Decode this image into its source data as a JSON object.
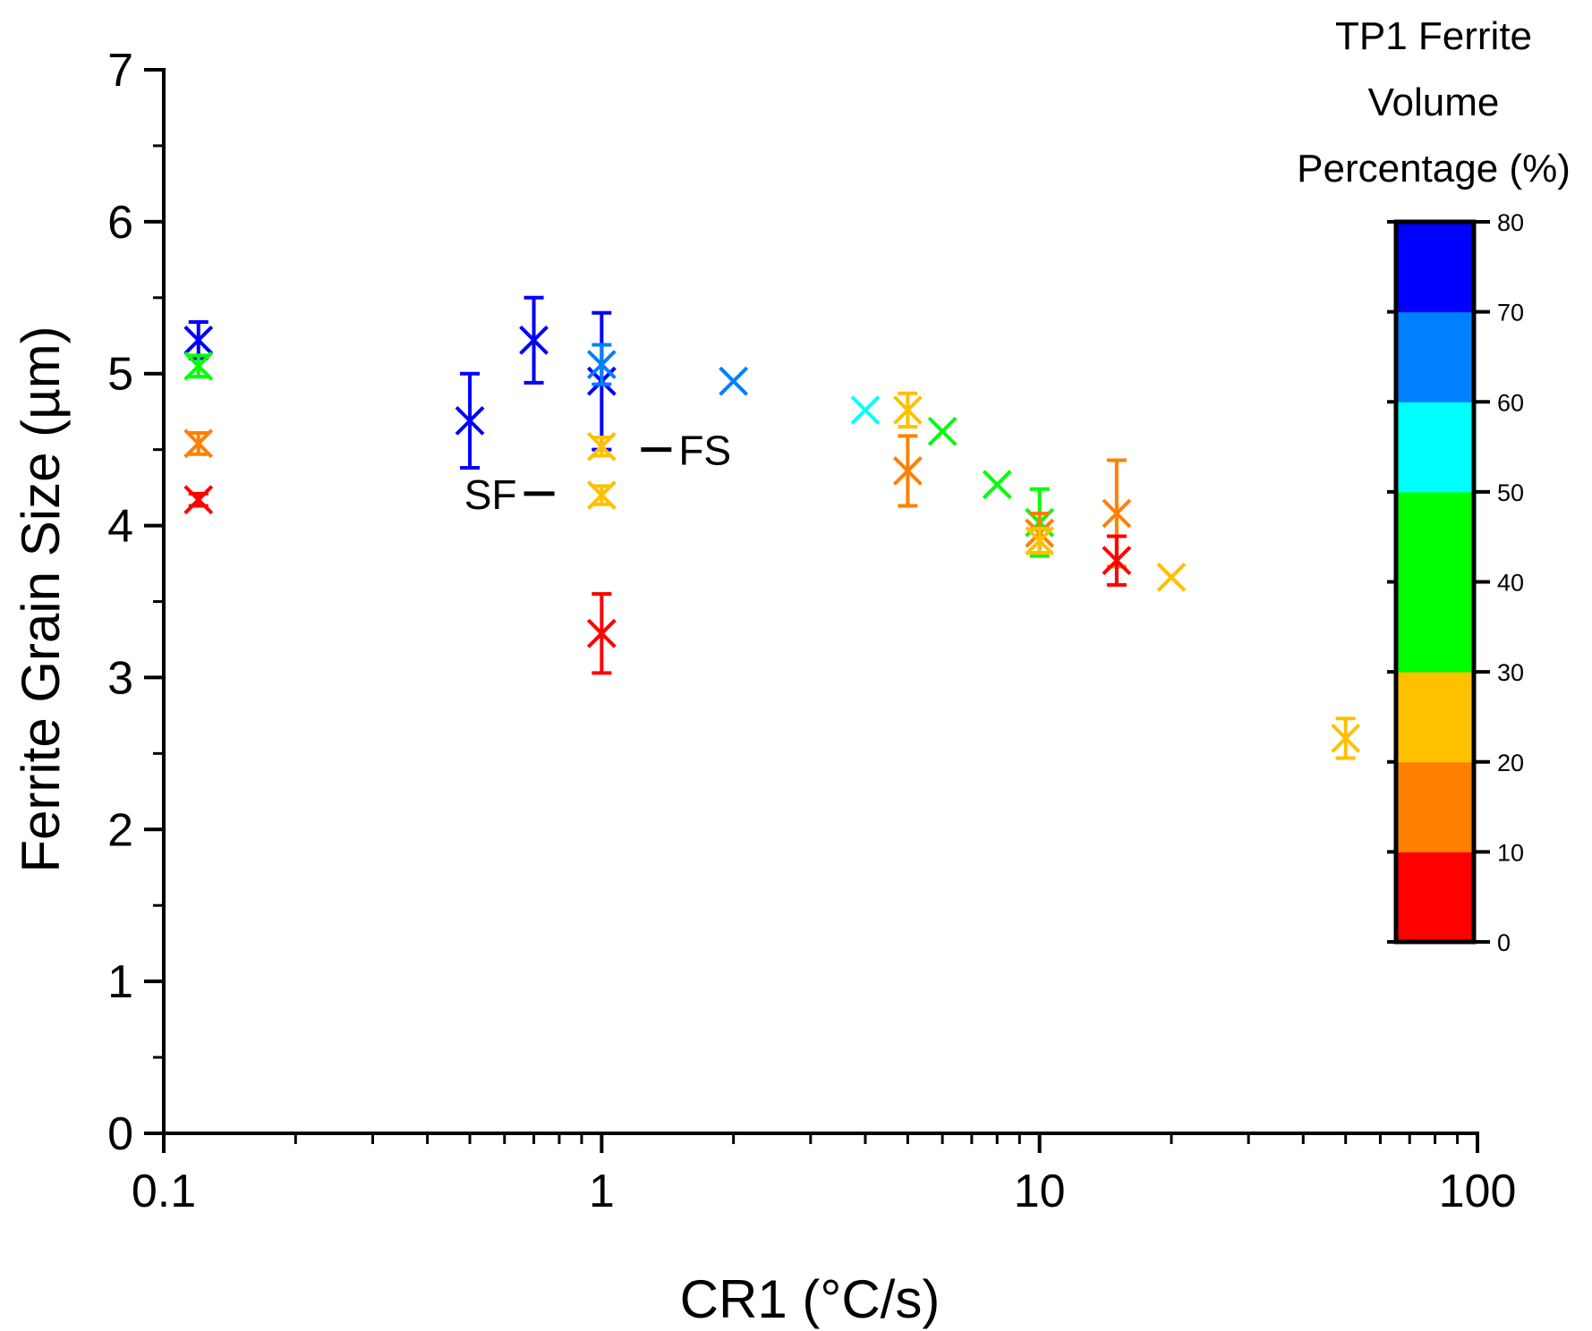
{
  "chart_data": {
    "type": "scatter",
    "xscale": "log",
    "xlabel": "CR1 (°C/s)",
    "ylabel": "Ferrite Grain Size (µm)",
    "xlim": [
      0.1,
      100
    ],
    "ylim": [
      0,
      7
    ],
    "xticks": [
      0.1,
      1,
      10,
      100
    ],
    "xtick_labels": [
      "0.1",
      "1",
      "10",
      "100"
    ],
    "yticks": [
      0,
      1,
      2,
      3,
      4,
      5,
      6,
      7
    ],
    "ytick_labels": [
      "0",
      "1",
      "2",
      "3",
      "4",
      "5",
      "6",
      "7"
    ],
    "colorbar": {
      "title_lines": [
        "TP1 Ferrite",
        "Volume",
        "Percentage (%)"
      ],
      "range": [
        0,
        80
      ],
      "ticks": [
        0,
        10,
        20,
        30,
        40,
        50,
        60,
        70,
        80
      ],
      "tick_labels": [
        "0",
        "10",
        "20",
        "30",
        "40",
        "50",
        "60",
        "70",
        "80"
      ],
      "bands": [
        {
          "from": 0,
          "to": 10,
          "color": "#ff0000"
        },
        {
          "from": 10,
          "to": 20,
          "color": "#ff8000"
        },
        {
          "from": 20,
          "to": 30,
          "color": "#ffc000"
        },
        {
          "from": 30,
          "to": 40,
          "color": "#00ff00"
        },
        {
          "from": 40,
          "to": 50,
          "color": "#00ff00"
        },
        {
          "from": 50,
          "to": 60,
          "color": "#00ffff"
        },
        {
          "from": 60,
          "to": 70,
          "color": "#0080ff"
        },
        {
          "from": 70,
          "to": 80,
          "color": "#0000ff"
        }
      ]
    },
    "points": [
      {
        "x": 0.12,
        "y": 5.22,
        "err": 0.12,
        "color": "#0000ff"
      },
      {
        "x": 0.12,
        "y": 5.05,
        "err": 0.07,
        "color": "#00ff00"
      },
      {
        "x": 0.12,
        "y": 4.54,
        "err": 0.07,
        "color": "#ff8000"
      },
      {
        "x": 0.12,
        "y": 4.17,
        "err": 0.04,
        "color": "#ff0000"
      },
      {
        "x": 0.5,
        "y": 4.69,
        "err": 0.31,
        "color": "#0000ff"
      },
      {
        "x": 0.7,
        "y": 5.22,
        "err": 0.28,
        "color": "#0000ff"
      },
      {
        "x": 1,
        "y": 4.95,
        "err": 0.45,
        "color": "#0000ff"
      },
      {
        "x": 1,
        "y": 5.06,
        "err": 0.13,
        "color": "#0080ff"
      },
      {
        "x": 1,
        "y": 4.52,
        "err": 0.06,
        "color": "#ffc000"
      },
      {
        "x": 1,
        "y": 4.2,
        "err": 0.06,
        "color": "#ffc000"
      },
      {
        "x": 1,
        "y": 3.29,
        "err": 0.26,
        "color": "#ff0000"
      },
      {
        "x": 2,
        "y": 4.95,
        "err": 0,
        "color": "#0080ff"
      },
      {
        "x": 4,
        "y": 4.76,
        "err": 0,
        "color": "#00ffff"
      },
      {
        "x": 5,
        "y": 4.76,
        "err": 0.11,
        "color": "#ffc000"
      },
      {
        "x": 5,
        "y": 4.36,
        "err": 0.23,
        "color": "#ff8000"
      },
      {
        "x": 6,
        "y": 4.62,
        "err": 0,
        "color": "#00ff00"
      },
      {
        "x": 8,
        "y": 4.27,
        "err": 0,
        "color": "#00ff00"
      },
      {
        "x": 10,
        "y": 4.02,
        "err": 0.22,
        "color": "#00ff00"
      },
      {
        "x": 10,
        "y": 3.95,
        "err": 0.13,
        "color": "#ff8000"
      },
      {
        "x": 10,
        "y": 3.9,
        "err": 0.08,
        "color": "#ffc000"
      },
      {
        "x": 15,
        "y": 4.08,
        "err": 0.35,
        "color": "#ff8000"
      },
      {
        "x": 15,
        "y": 3.77,
        "err": 0.16,
        "color": "#ff0000"
      },
      {
        "x": 20,
        "y": 3.66,
        "err": 0,
        "color": "#ffc000"
      },
      {
        "x": 50,
        "y": 2.6,
        "err": 0.13,
        "color": "#ffc000"
      }
    ],
    "annotations": [
      {
        "text": "FS",
        "x": 1.23,
        "y": 4.5,
        "side": "right"
      },
      {
        "text": "SF",
        "x": 0.78,
        "y": 4.21,
        "side": "left"
      }
    ]
  }
}
